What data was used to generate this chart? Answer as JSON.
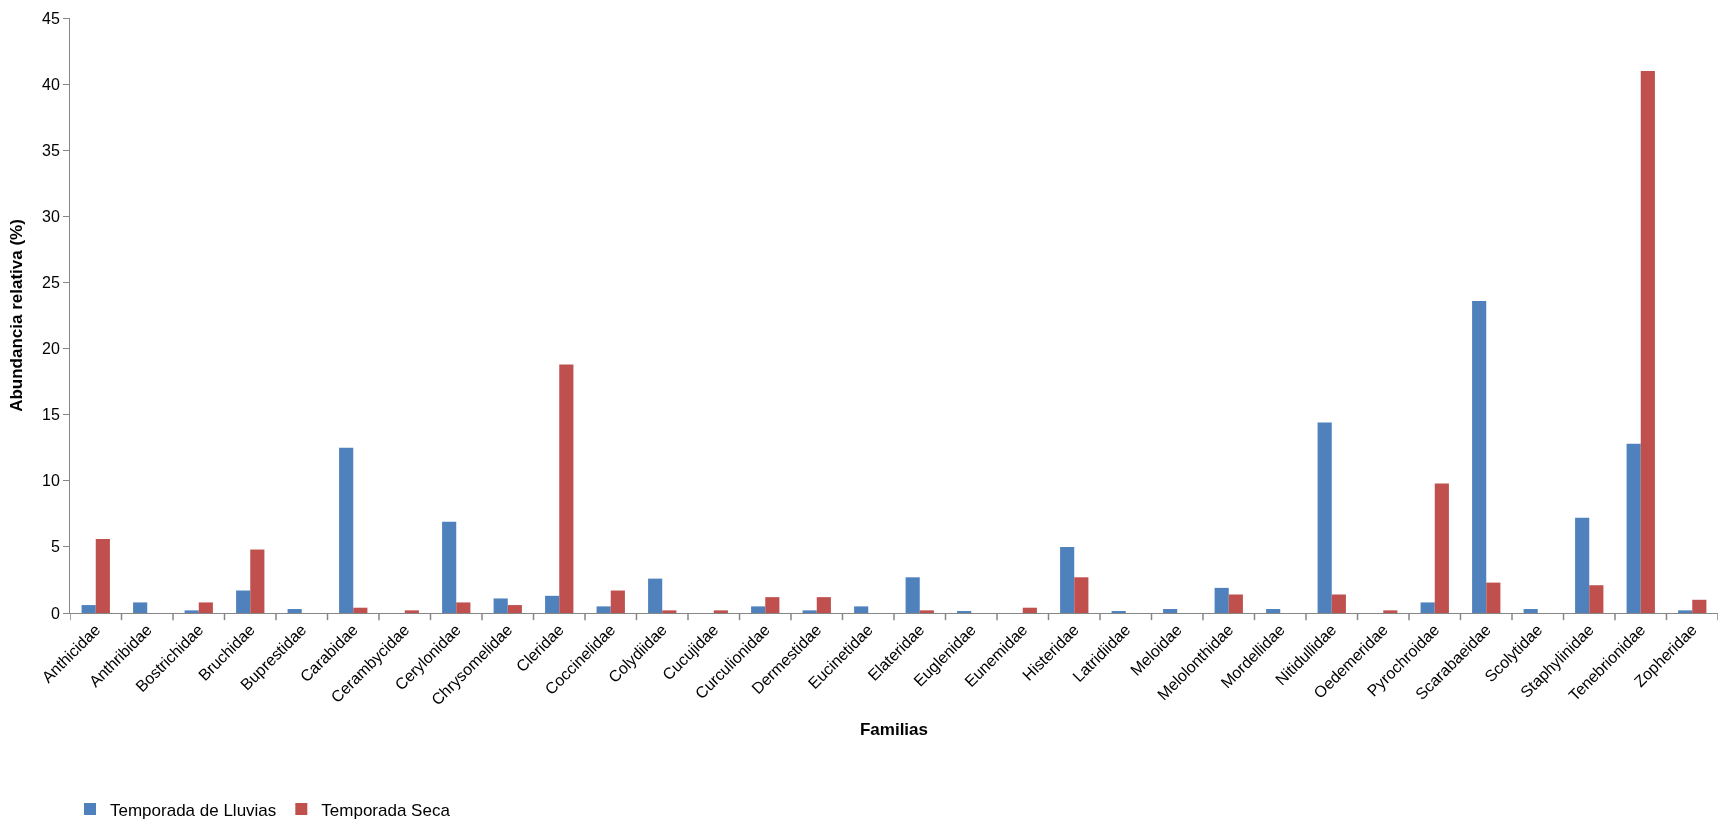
{
  "chart_data": {
    "type": "bar",
    "xlabel": "Familias",
    "ylabel": "Abundancia relativa (%)",
    "categories": [
      "Anthicidae",
      "Anthribidae",
      "Bostrichidae",
      "Bruchidae",
      "Buprestidae",
      "Carabidae",
      "Cerambycidae",
      "Cerylonidae",
      "Chrysomelidae",
      "Cleridae",
      "Coccinelidae",
      "Colydiidae",
      "Cucujidae",
      "Curculionidae",
      "Dermestidae",
      "Eucinetidae",
      "Elateridae",
      "Euglenidae",
      "Eunemidae",
      "Histeridae",
      "Latridiidae",
      "Meloidae",
      "Melolonthidae",
      "Mordellidae",
      "Nitidullidae",
      "Oedemeridae",
      "Pyrochroidae",
      "Scarabaeidae",
      "Scolytidae",
      "Staphylinidae",
      "Tenebrionidae",
      "Zopheridae"
    ],
    "series": [
      {
        "name": "Temporada de Lluvias",
        "color": "#4f81bd",
        "values": [
          0.6,
          0.8,
          0.2,
          1.7,
          0.3,
          12.5,
          0,
          6.9,
          1.1,
          1.3,
          0.5,
          2.6,
          0,
          0.5,
          0.2,
          0.5,
          2.7,
          0.1,
          0,
          5.0,
          0.1,
          0.3,
          1.9,
          0.3,
          14.4,
          0,
          0.8,
          23.6,
          0.3,
          7.2,
          12.8,
          0.2
        ]
      },
      {
        "name": "Temporada Seca",
        "color": "#c0504d",
        "values": [
          5.6,
          0,
          0.8,
          4.8,
          0,
          0.4,
          0.2,
          0.8,
          0.6,
          18.8,
          1.7,
          0.2,
          0.2,
          1.2,
          1.2,
          0,
          0.2,
          0,
          0.4,
          2.7,
          0,
          0,
          1.4,
          0,
          1.4,
          0.2,
          9.8,
          2.3,
          0,
          2.1,
          41.0,
          1.0
        ]
      }
    ],
    "ylim": [
      0,
      45
    ],
    "yticks": [
      0,
      5,
      10,
      15,
      20,
      25,
      30,
      35,
      40,
      45
    ],
    "legend": "bottom left"
  }
}
